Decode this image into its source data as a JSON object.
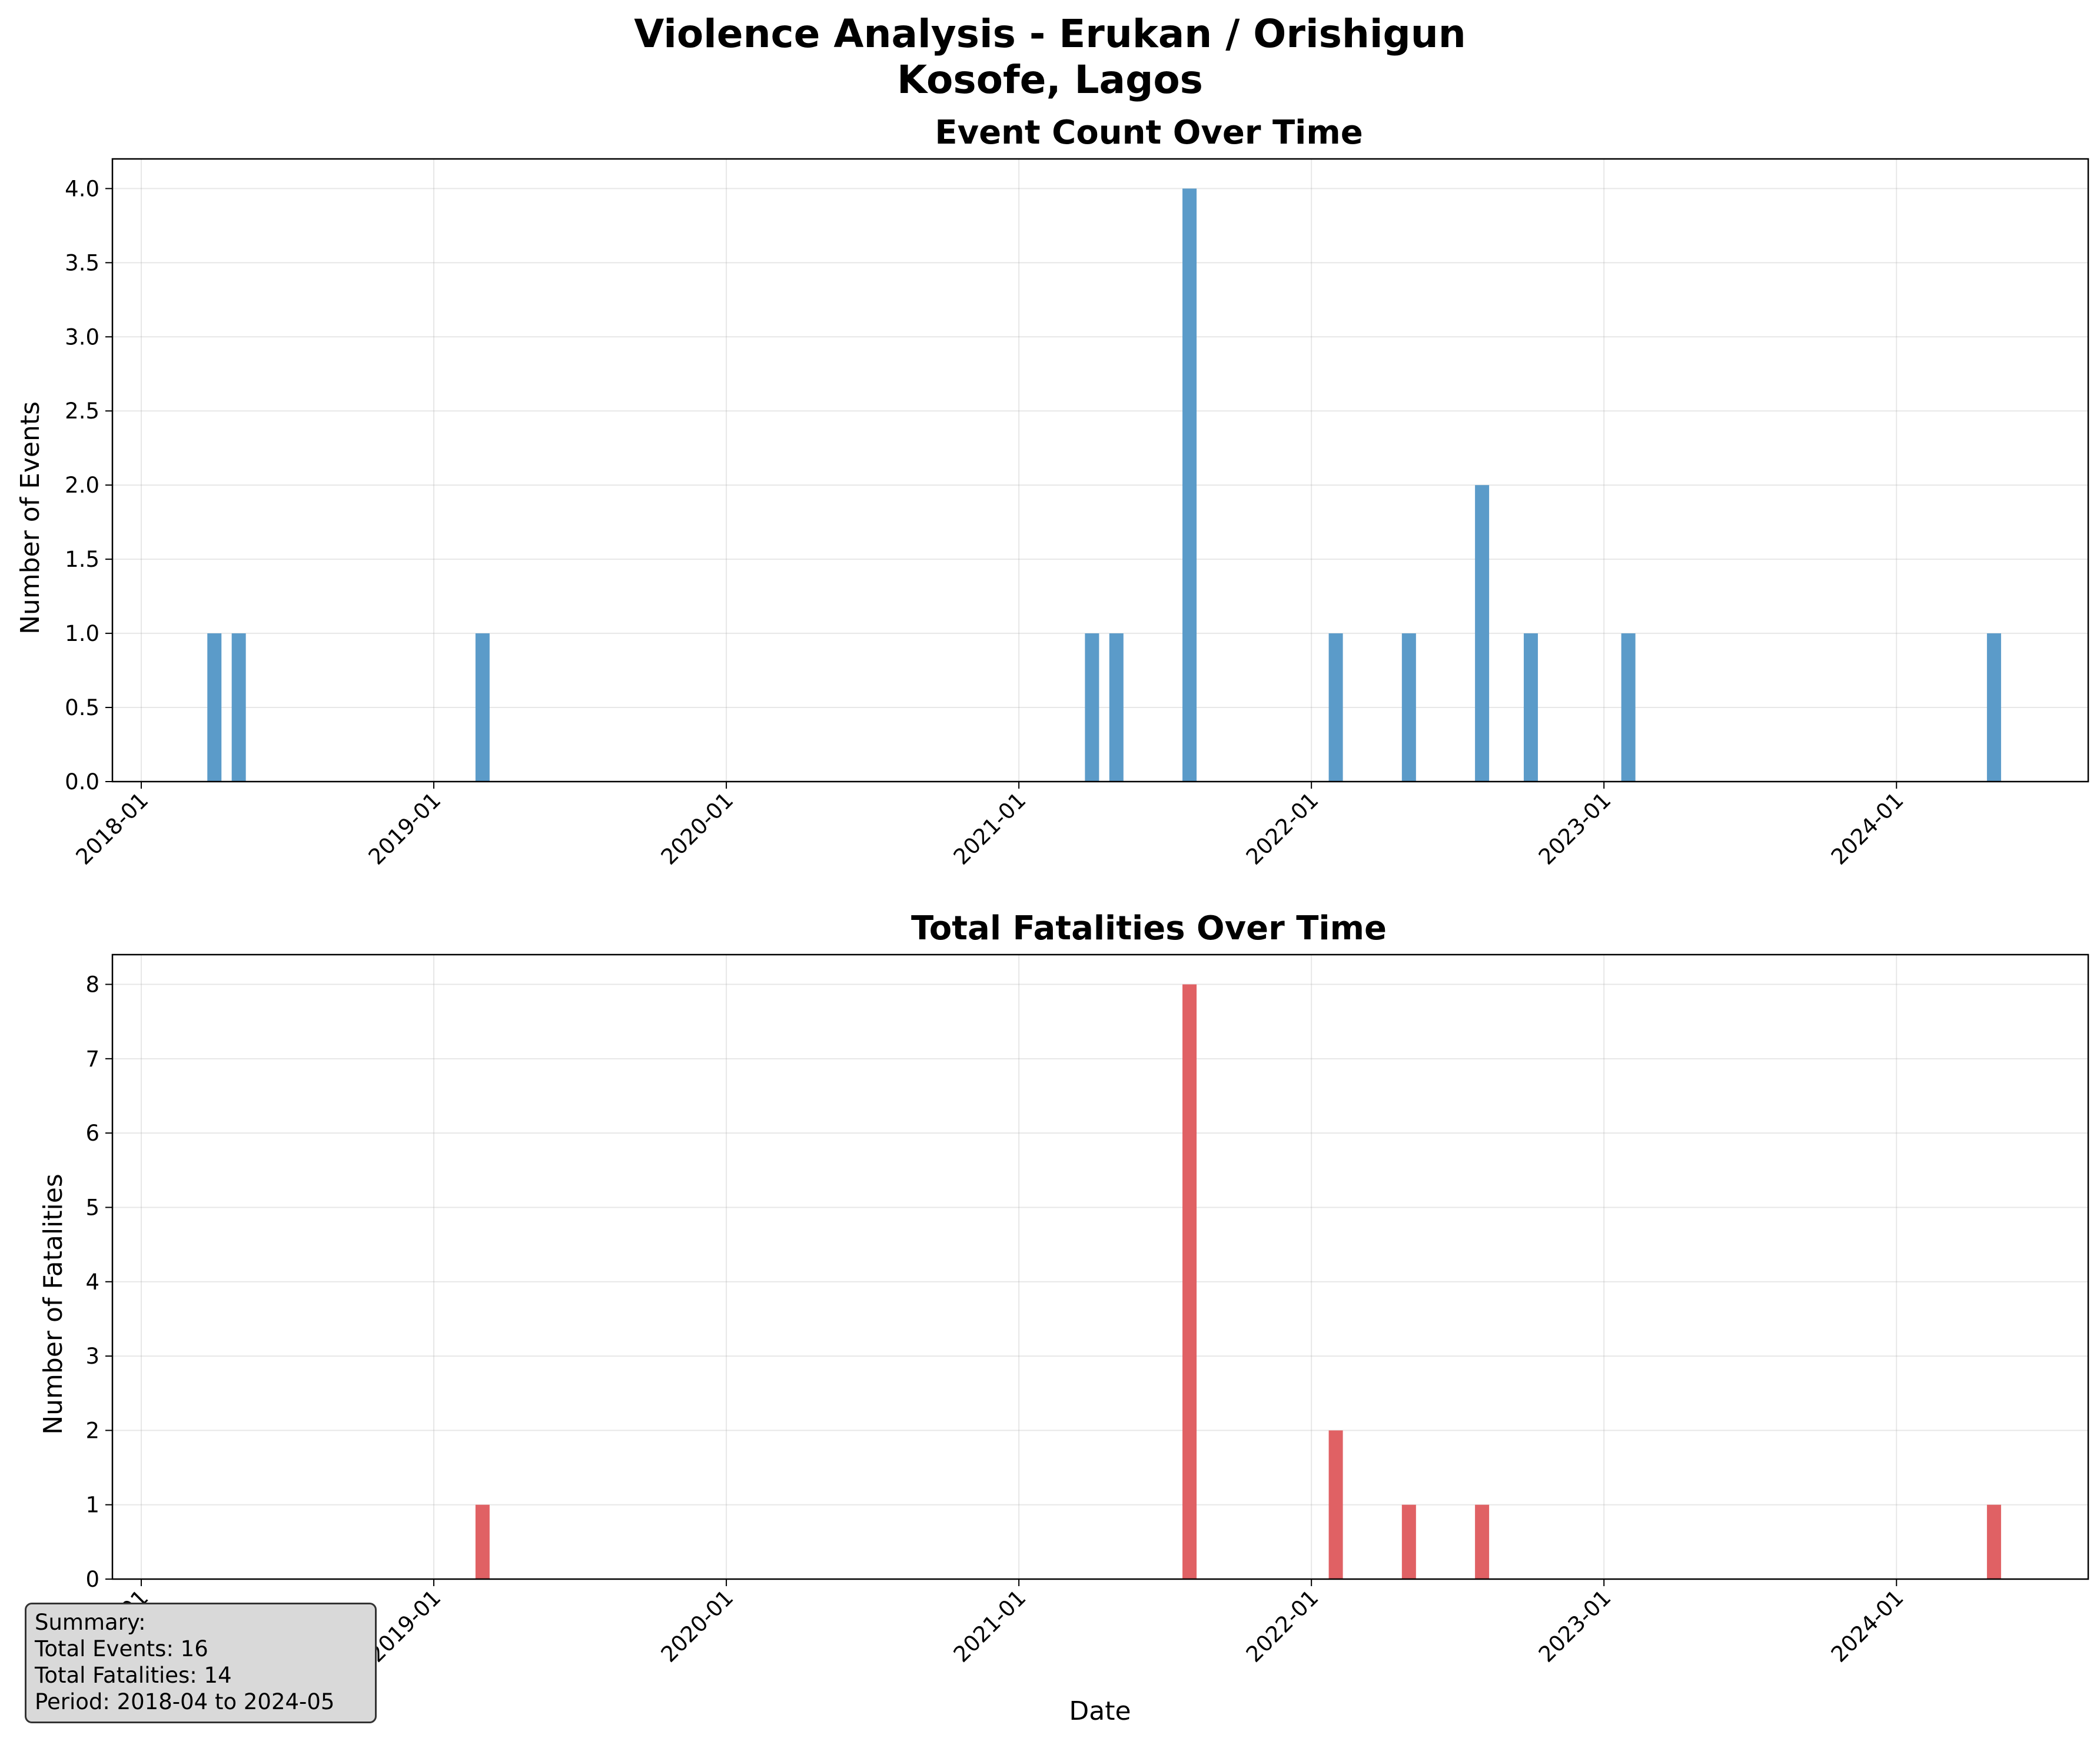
{
  "title_line1": "Violence Analysis - Erukan / Orishigun",
  "title_line2": "Kosofe, Lagos",
  "colors": {
    "events": "#5b9bc9",
    "fatalities": "#e06164"
  },
  "x_ticks": [
    "2018-01",
    "2019-01",
    "2020-01",
    "2021-01",
    "2022-01",
    "2023-01",
    "2024-01"
  ],
  "chart_data": [
    {
      "type": "bar",
      "title": "Event Count Over Time",
      "xlabel": "",
      "ylabel": "Number of Events",
      "ylim": [
        0,
        4.2
      ],
      "yticks": [
        "0.0",
        "0.5",
        "1.0",
        "1.5",
        "2.0",
        "2.5",
        "3.0",
        "3.5",
        "4.0"
      ],
      "grid": true,
      "x": [
        "2018-04",
        "2018-05",
        "2019-03",
        "2021-04",
        "2021-05",
        "2021-08",
        "2022-02",
        "2022-05",
        "2022-08",
        "2022-10",
        "2023-02",
        "2024-05"
      ],
      "values": [
        1,
        1,
        1,
        1,
        1,
        4,
        1,
        1,
        2,
        1,
        1,
        1
      ]
    },
    {
      "type": "bar",
      "title": "Total Fatalities Over Time",
      "xlabel": "Date",
      "ylabel": "Number of Fatalities",
      "ylim": [
        0,
        8.4
      ],
      "yticks": [
        "0",
        "1",
        "2",
        "3",
        "4",
        "5",
        "6",
        "7",
        "8"
      ],
      "grid": true,
      "x": [
        "2019-03",
        "2021-08",
        "2022-02",
        "2022-05",
        "2022-08",
        "2024-05"
      ],
      "values": [
        1,
        8,
        2,
        1,
        1,
        1
      ]
    }
  ],
  "summary": {
    "heading": "Summary:",
    "total_events": "Total Events: 16",
    "total_fatalities": "Total Fatalities: 14",
    "period": "Period: 2018-04 to 2024-05"
  }
}
